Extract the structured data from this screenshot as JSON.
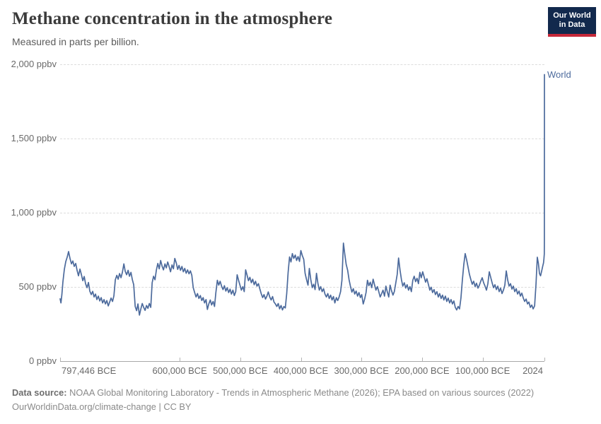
{
  "header": {
    "title": "Methane concentration in the atmosphere",
    "subtitle": "Measured in parts per billion.",
    "logo": {
      "line1": "Our World",
      "line2": "in Data"
    }
  },
  "footer": {
    "datasource_label": "Data source:",
    "datasource_text": " NOAA Global Monitoring Laboratory - Trends in Atmospheric Methane (2026); EPA based on various sources (2022)",
    "license_text": "OurWorldinData.org/climate-change | CC BY"
  },
  "colors": {
    "line": "#4c6a9c",
    "series_label": "#4c6a9c",
    "gridline": "#dcdcdc",
    "axis": "#a8a8a8",
    "tick_text": "#696969",
    "logo_navy": "#12294d",
    "logo_red": "#c62839"
  },
  "chart_data": {
    "type": "line",
    "title": "Methane concentration in the atmosphere",
    "subtitle": "Measured in parts per billion.",
    "unit": "ppbv",
    "grid": "dashed-horizontal",
    "legend_position": "end-of-line",
    "series_label": "World",
    "x_axis": {
      "range": [
        -797446,
        2024
      ],
      "ticks": [
        {
          "value": -797446,
          "label": "797,446 BCE"
        },
        {
          "value": -600000,
          "label": "600,000 BCE"
        },
        {
          "value": -500000,
          "label": "500,000 BCE"
        },
        {
          "value": -400000,
          "label": "400,000 BCE"
        },
        {
          "value": -300000,
          "label": "300,000 BCE"
        },
        {
          "value": -200000,
          "label": "200,000 BCE"
        },
        {
          "value": -100000,
          "label": "100,000 BCE"
        },
        {
          "value": 2024,
          "label": "2024"
        }
      ]
    },
    "y_axis": {
      "range": [
        0,
        2000
      ],
      "ticks": [
        {
          "value": 0,
          "label": "0 ppbv"
        },
        {
          "value": 500,
          "label": "500 ppbv"
        },
        {
          "value": 1000,
          "label": "1,000 ppbv"
        },
        {
          "value": 1500,
          "label": "1,500 ppbv"
        },
        {
          "value": 2000,
          "label": "2,000 ppbv"
        }
      ]
    },
    "points": [
      [
        -797400,
        420
      ],
      [
        -796000,
        392
      ],
      [
        -794500,
        448
      ],
      [
        -792800,
        535
      ],
      [
        -790400,
        618
      ],
      [
        -788100,
        670
      ],
      [
        -785800,
        700
      ],
      [
        -783400,
        738
      ],
      [
        -781100,
        692
      ],
      [
        -778700,
        655
      ],
      [
        -776400,
        675
      ],
      [
        -774100,
        638
      ],
      [
        -771700,
        658
      ],
      [
        -769400,
        612
      ],
      [
        -767100,
        575
      ],
      [
        -764700,
        620
      ],
      [
        -762400,
        585
      ],
      [
        -760000,
        542
      ],
      [
        -757700,
        570
      ],
      [
        -755400,
        522
      ],
      [
        -753000,
        495
      ],
      [
        -750700,
        530
      ],
      [
        -748400,
        472
      ],
      [
        -746000,
        448
      ],
      [
        -743700,
        470
      ],
      [
        -741300,
        432
      ],
      [
        -739000,
        452
      ],
      [
        -736700,
        415
      ],
      [
        -734300,
        438
      ],
      [
        -732000,
        405
      ],
      [
        -729600,
        428
      ],
      [
        -727300,
        392
      ],
      [
        -725000,
        415
      ],
      [
        -722600,
        385
      ],
      [
        -720300,
        408
      ],
      [
        -718000,
        372
      ],
      [
        -715600,
        398
      ],
      [
        -713300,
        425
      ],
      [
        -710900,
        402
      ],
      [
        -708600,
        440
      ],
      [
        -706300,
        548
      ],
      [
        -703900,
        578
      ],
      [
        -701600,
        552
      ],
      [
        -699300,
        590
      ],
      [
        -696900,
        562
      ],
      [
        -694600,
        598
      ],
      [
        -692200,
        655
      ],
      [
        -689900,
        605
      ],
      [
        -687600,
        582
      ],
      [
        -685200,
        612
      ],
      [
        -682900,
        572
      ],
      [
        -680500,
        598
      ],
      [
        -678200,
        548
      ],
      [
        -675900,
        515
      ],
      [
        -673500,
        368
      ],
      [
        -671200,
        340
      ],
      [
        -668900,
        385
      ],
      [
        -666500,
        310
      ],
      [
        -664200,
        352
      ],
      [
        -661800,
        388
      ],
      [
        -659500,
        362
      ],
      [
        -657200,
        342
      ],
      [
        -654800,
        375
      ],
      [
        -652500,
        355
      ],
      [
        -650200,
        388
      ],
      [
        -647800,
        362
      ],
      [
        -645500,
        528
      ],
      [
        -643100,
        572
      ],
      [
        -640800,
        548
      ],
      [
        -638500,
        615
      ],
      [
        -636100,
        658
      ],
      [
        -633800,
        622
      ],
      [
        -631500,
        678
      ],
      [
        -629100,
        640
      ],
      [
        -626800,
        615
      ],
      [
        -624400,
        655
      ],
      [
        -622100,
        628
      ],
      [
        -619800,
        668
      ],
      [
        -617400,
        635
      ],
      [
        -615100,
        602
      ],
      [
        -612700,
        648
      ],
      [
        -610400,
        622
      ],
      [
        -608100,
        692
      ],
      [
        -605700,
        662
      ],
      [
        -603400,
        618
      ],
      [
        -601100,
        645
      ],
      [
        -598700,
        612
      ],
      [
        -596400,
        638
      ],
      [
        -594000,
        602
      ],
      [
        -591700,
        625
      ],
      [
        -589400,
        592
      ],
      [
        -587000,
        615
      ],
      [
        -584700,
        588
      ],
      [
        -582400,
        608
      ],
      [
        -580000,
        578
      ],
      [
        -577700,
        495
      ],
      [
        -575300,
        462
      ],
      [
        -573000,
        432
      ],
      [
        -570700,
        455
      ],
      [
        -568300,
        422
      ],
      [
        -566000,
        442
      ],
      [
        -563600,
        408
      ],
      [
        -561300,
        428
      ],
      [
        -559000,
        392
      ],
      [
        -556600,
        415
      ],
      [
        -554300,
        348
      ],
      [
        -552000,
        385
      ],
      [
        -549600,
        412
      ],
      [
        -547300,
        378
      ],
      [
        -544900,
        402
      ],
      [
        -542600,
        368
      ],
      [
        -540300,
        462
      ],
      [
        -537900,
        545
      ],
      [
        -535600,
        512
      ],
      [
        -533300,
        538
      ],
      [
        -530900,
        505
      ],
      [
        -528600,
        482
      ],
      [
        -526200,
        508
      ],
      [
        -523900,
        472
      ],
      [
        -521600,
        495
      ],
      [
        -519200,
        462
      ],
      [
        -516900,
        485
      ],
      [
        -514600,
        452
      ],
      [
        -512200,
        478
      ],
      [
        -509900,
        442
      ],
      [
        -507500,
        468
      ],
      [
        -505200,
        582
      ],
      [
        -502900,
        545
      ],
      [
        -500500,
        512
      ],
      [
        -498200,
        478
      ],
      [
        -495800,
        502
      ],
      [
        -493500,
        468
      ],
      [
        -491200,
        615
      ],
      [
        -488800,
        578
      ],
      [
        -486500,
        542
      ],
      [
        -484200,
        565
      ],
      [
        -481800,
        528
      ],
      [
        -479500,
        552
      ],
      [
        -477100,
        515
      ],
      [
        -474800,
        538
      ],
      [
        -472500,
        505
      ],
      [
        -470100,
        522
      ],
      [
        -467800,
        488
      ],
      [
        -465500,
        455
      ],
      [
        -463100,
        428
      ],
      [
        -460800,
        448
      ],
      [
        -458400,
        418
      ],
      [
        -456100,
        438
      ],
      [
        -453800,
        466
      ],
      [
        -451400,
        432
      ],
      [
        -449100,
        412
      ],
      [
        -446700,
        435
      ],
      [
        -444400,
        398
      ],
      [
        -442100,
        385
      ],
      [
        -439700,
        368
      ],
      [
        -437400,
        388
      ],
      [
        -435100,
        352
      ],
      [
        -432700,
        375
      ],
      [
        -430400,
        345
      ],
      [
        -428000,
        368
      ],
      [
        -425700,
        358
      ],
      [
        -423400,
        455
      ],
      [
        -421000,
        598
      ],
      [
        -418700,
        702
      ],
      [
        -416400,
        668
      ],
      [
        -414000,
        725
      ],
      [
        -411700,
        692
      ],
      [
        -409300,
        715
      ],
      [
        -407000,
        678
      ],
      [
        -404700,
        705
      ],
      [
        -402300,
        672
      ],
      [
        -400000,
        745
      ],
      [
        -397700,
        712
      ],
      [
        -395300,
        685
      ],
      [
        -393000,
        592
      ],
      [
        -390600,
        548
      ],
      [
        -388300,
        512
      ],
      [
        -386000,
        625
      ],
      [
        -383600,
        548
      ],
      [
        -381300,
        495
      ],
      [
        -378900,
        518
      ],
      [
        -376600,
        482
      ],
      [
        -374300,
        592
      ],
      [
        -371900,
        525
      ],
      [
        -369600,
        478
      ],
      [
        -367300,
        502
      ],
      [
        -364900,
        468
      ],
      [
        -362600,
        488
      ],
      [
        -360200,
        452
      ],
      [
        -357900,
        432
      ],
      [
        -355600,
        455
      ],
      [
        -353200,
        422
      ],
      [
        -350900,
        445
      ],
      [
        -348600,
        412
      ],
      [
        -346200,
        435
      ],
      [
        -343900,
        392
      ],
      [
        -341500,
        428
      ],
      [
        -339200,
        408
      ],
      [
        -336900,
        432
      ],
      [
        -334500,
        468
      ],
      [
        -332200,
        545
      ],
      [
        -329800,
        795
      ],
      [
        -327500,
        718
      ],
      [
        -325200,
        652
      ],
      [
        -322800,
        612
      ],
      [
        -320500,
        548
      ],
      [
        -318200,
        505
      ],
      [
        -315800,
        465
      ],
      [
        -313500,
        488
      ],
      [
        -311100,
        452
      ],
      [
        -308800,
        472
      ],
      [
        -306500,
        438
      ],
      [
        -304100,
        462
      ],
      [
        -301800,
        428
      ],
      [
        -299500,
        448
      ],
      [
        -297100,
        385
      ],
      [
        -294800,
        418
      ],
      [
        -292400,
        462
      ],
      [
        -290100,
        545
      ],
      [
        -287800,
        508
      ],
      [
        -285400,
        532
      ],
      [
        -283100,
        495
      ],
      [
        -280800,
        552
      ],
      [
        -278400,
        515
      ],
      [
        -276100,
        478
      ],
      [
        -273700,
        502
      ],
      [
        -271400,
        468
      ],
      [
        -269100,
        432
      ],
      [
        -266700,
        455
      ],
      [
        -264400,
        478
      ],
      [
        -262000,
        438
      ],
      [
        -259700,
        505
      ],
      [
        -257400,
        468
      ],
      [
        -255000,
        432
      ],
      [
        -252700,
        512
      ],
      [
        -250400,
        475
      ],
      [
        -248000,
        445
      ],
      [
        -245700,
        468
      ],
      [
        -243300,
        528
      ],
      [
        -241000,
        585
      ],
      [
        -238700,
        695
      ],
      [
        -236300,
        612
      ],
      [
        -234000,
        548
      ],
      [
        -231700,
        505
      ],
      [
        -229300,
        528
      ],
      [
        -227000,
        492
      ],
      [
        -224600,
        515
      ],
      [
        -222300,
        478
      ],
      [
        -220000,
        502
      ],
      [
        -217600,
        468
      ],
      [
        -215300,
        545
      ],
      [
        -212900,
        572
      ],
      [
        -210600,
        535
      ],
      [
        -208300,
        558
      ],
      [
        -205900,
        522
      ],
      [
        -203600,
        598
      ],
      [
        -201300,
        562
      ],
      [
        -198900,
        602
      ],
      [
        -196600,
        568
      ],
      [
        -194200,
        532
      ],
      [
        -191900,
        555
      ],
      [
        -189600,
        518
      ],
      [
        -187200,
        478
      ],
      [
        -184900,
        498
      ],
      [
        -182600,
        462
      ],
      [
        -180200,
        482
      ],
      [
        -177900,
        448
      ],
      [
        -175500,
        468
      ],
      [
        -173200,
        432
      ],
      [
        -170900,
        455
      ],
      [
        -168500,
        422
      ],
      [
        -166200,
        445
      ],
      [
        -163900,
        412
      ],
      [
        -161500,
        438
      ],
      [
        -159200,
        402
      ],
      [
        -156800,
        425
      ],
      [
        -154500,
        392
      ],
      [
        -152200,
        415
      ],
      [
        -149800,
        385
      ],
      [
        -147500,
        405
      ],
      [
        -145100,
        362
      ],
      [
        -142800,
        345
      ],
      [
        -140500,
        368
      ],
      [
        -138100,
        352
      ],
      [
        -135800,
        425
      ],
      [
        -133500,
        545
      ],
      [
        -131100,
        648
      ],
      [
        -128800,
        725
      ],
      [
        -126400,
        682
      ],
      [
        -124100,
        635
      ],
      [
        -121800,
        585
      ],
      [
        -119400,
        548
      ],
      [
        -117100,
        518
      ],
      [
        -114800,
        538
      ],
      [
        -112400,
        502
      ],
      [
        -110100,
        525
      ],
      [
        -107700,
        492
      ],
      [
        -105400,
        512
      ],
      [
        -103100,
        538
      ],
      [
        -100700,
        562
      ],
      [
        -98400,
        528
      ],
      [
        -96000,
        505
      ],
      [
        -93700,
        478
      ],
      [
        -91400,
        522
      ],
      [
        -89000,
        602
      ],
      [
        -86700,
        565
      ],
      [
        -84400,
        528
      ],
      [
        -82000,
        495
      ],
      [
        -79700,
        515
      ],
      [
        -77300,
        482
      ],
      [
        -75000,
        505
      ],
      [
        -72700,
        468
      ],
      [
        -70300,
        492
      ],
      [
        -68000,
        455
      ],
      [
        -65700,
        478
      ],
      [
        -63300,
        512
      ],
      [
        -61000,
        608
      ],
      [
        -58600,
        545
      ],
      [
        -56300,
        505
      ],
      [
        -54000,
        522
      ],
      [
        -51600,
        485
      ],
      [
        -49300,
        505
      ],
      [
        -47000,
        468
      ],
      [
        -44600,
        488
      ],
      [
        -42300,
        452
      ],
      [
        -39900,
        472
      ],
      [
        -37600,
        438
      ],
      [
        -35300,
        458
      ],
      [
        -32900,
        425
      ],
      [
        -30600,
        402
      ],
      [
        -28200,
        418
      ],
      [
        -25900,
        385
      ],
      [
        -23600,
        398
      ],
      [
        -21200,
        362
      ],
      [
        -18900,
        378
      ],
      [
        -16600,
        352
      ],
      [
        -14200,
        372
      ],
      [
        -11900,
        520
      ],
      [
        -9800,
        700
      ],
      [
        -8000,
        660
      ],
      [
        -6200,
        590
      ],
      [
        -4400,
        575
      ],
      [
        -2600,
        605
      ],
      [
        -800,
        640
      ],
      [
        500,
        662
      ],
      [
        1200,
        690
      ],
      [
        1750,
        722
      ],
      [
        1850,
        808
      ],
      [
        1950,
        1120
      ],
      [
        1984,
        1645
      ],
      [
        2000,
        1775
      ],
      [
        2024,
        1931
      ]
    ]
  }
}
